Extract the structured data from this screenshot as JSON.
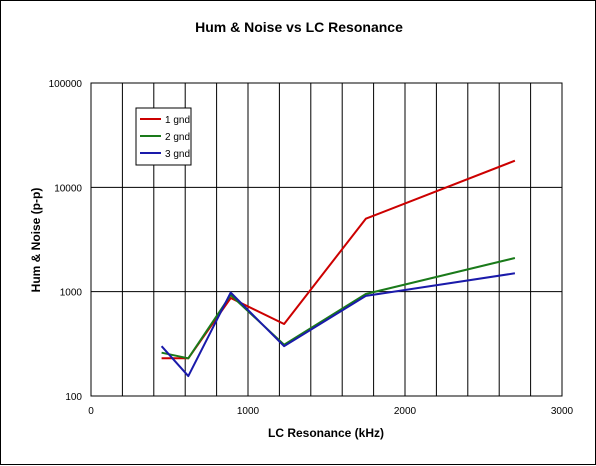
{
  "chart_data": {
    "type": "line",
    "title": "Hum & Noise vs LC Resonance",
    "xlabel": "LC Resonance (kHz)",
    "ylabel": "Hum & Noise (p-p)",
    "xlim": [
      0,
      3000
    ],
    "ylim": [
      100,
      100000
    ],
    "yscale": "log",
    "x_ticks": [
      "0",
      "1000",
      "2000",
      "3000"
    ],
    "y_ticks": [
      "100",
      "1000",
      "10000",
      "100000"
    ],
    "grid": {
      "horizontal": true,
      "vertical": true,
      "x_step": 200
    },
    "legend": "top-left",
    "series": [
      {
        "name": "1 gnd",
        "color": "#cc0000",
        "x": [
          450,
          620,
          890,
          1230,
          1750,
          2700
        ],
        "y": [
          230,
          230,
          870,
          490,
          5000,
          18000
        ]
      },
      {
        "name": "2 gnd",
        "color": "#1a7a1a",
        "x": [
          450,
          620,
          890,
          1230,
          1750,
          2700
        ],
        "y": [
          260,
          230,
          930,
          310,
          950,
          2100
        ]
      },
      {
        "name": "3 gnd",
        "color": "#1a1aaa",
        "x": [
          450,
          620,
          890,
          1230,
          1750,
          2700
        ],
        "y": [
          300,
          155,
          980,
          300,
          910,
          1500
        ]
      }
    ]
  }
}
